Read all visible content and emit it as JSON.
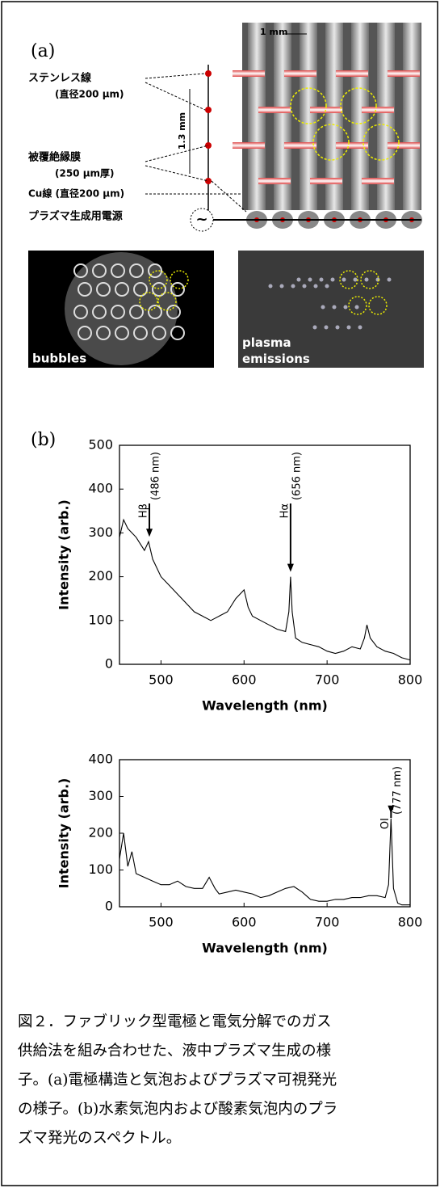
{
  "figure": {
    "panel_a": {
      "label": "(a)",
      "scale_label": "1 mm",
      "pitch_label": "1.3 mm",
      "wire_label": "ステンレス線",
      "wire_size": "(直径200 μm)",
      "coating_label": "被覆絶縁膜",
      "coating_size": "(250 μm厚)",
      "cu_label": "Cu線 (直径200 μm)",
      "power_label": "プラズマ生成用電源",
      "source_symbol": "~"
    },
    "photos": [
      {
        "label": "bubbles"
      },
      {
        "label": "plasma\nemissions"
      }
    ],
    "panel_b": {
      "label": "(b)"
    },
    "caption": [
      "図２．ファブリック型電極と電気分解でのガス",
      "供給法を組み合わせた、液中プラズマ生成の様",
      "子。(a)電極構造と気泡およびプラズマ可視発光",
      "の様子。(b)水素気泡内および酸素気泡内のプラ",
      "ズマ発光のスペクトル。"
    ]
  },
  "chart_data": [
    {
      "type": "line",
      "xlabel": "Wavelength (nm)",
      "ylabel": "Intensity (arb.)",
      "color": "#000000",
      "xlim": [
        450,
        800
      ],
      "xticks": [
        500,
        600,
        700,
        800
      ],
      "ylim": [
        0,
        500
      ],
      "yticks": [
        0,
        100,
        200,
        300,
        400,
        500
      ],
      "x": [
        450,
        455,
        460,
        470,
        480,
        485,
        490,
        500,
        510,
        520,
        530,
        540,
        550,
        560,
        570,
        580,
        590,
        600,
        605,
        610,
        620,
        630,
        640,
        650,
        654,
        656,
        658,
        662,
        670,
        680,
        690,
        700,
        710,
        720,
        730,
        740,
        745,
        748,
        752,
        760,
        770,
        780,
        790,
        800
      ],
      "values": [
        290,
        330,
        310,
        290,
        260,
        280,
        240,
        200,
        180,
        160,
        140,
        120,
        110,
        100,
        110,
        120,
        150,
        170,
        130,
        110,
        100,
        90,
        80,
        75,
        120,
        200,
        120,
        60,
        50,
        45,
        40,
        30,
        25,
        30,
        40,
        35,
        60,
        90,
        60,
        40,
        30,
        25,
        15,
        10
      ],
      "annotations": [
        {
          "x": 486,
          "label": "Hβ",
          "detail": "(486 nm)"
        },
        {
          "x": 656,
          "label": "Hα",
          "detail": "(656 nm)"
        }
      ]
    },
    {
      "type": "line",
      "xlabel": "Wavelength (nm)",
      "ylabel": "Intensity (arb.)",
      "color": "#000000",
      "xlim": [
        450,
        800
      ],
      "xticks": [
        500,
        600,
        700,
        800
      ],
      "ylim": [
        0,
        400
      ],
      "yticks": [
        0,
        100,
        200,
        300,
        400
      ],
      "x": [
        450,
        455,
        460,
        465,
        470,
        480,
        490,
        500,
        510,
        520,
        530,
        540,
        550,
        558,
        565,
        570,
        580,
        590,
        600,
        610,
        620,
        630,
        640,
        650,
        660,
        670,
        680,
        690,
        700,
        710,
        720,
        730,
        740,
        750,
        760,
        770,
        774,
        777,
        780,
        785,
        790,
        800
      ],
      "values": [
        130,
        200,
        110,
        150,
        90,
        80,
        70,
        60,
        60,
        70,
        55,
        50,
        50,
        80,
        50,
        35,
        40,
        45,
        40,
        35,
        25,
        30,
        40,
        50,
        55,
        40,
        20,
        15,
        15,
        20,
        20,
        25,
        25,
        30,
        30,
        25,
        60,
        240,
        50,
        10,
        5,
        5
      ],
      "annotations": [
        {
          "x": 777,
          "label": "OI",
          "detail": "(777 nm)"
        }
      ]
    }
  ]
}
